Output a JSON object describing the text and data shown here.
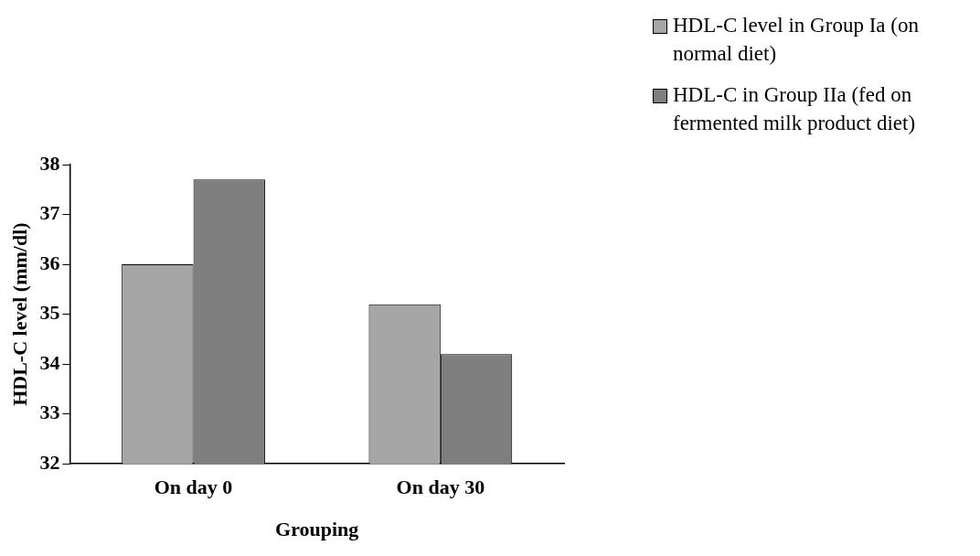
{
  "chart_data": {
    "type": "bar",
    "xlabel": "Grouping",
    "ylabel": "HDL-C level (mm/dl)",
    "categories": [
      "On day 0",
      "On day 30"
    ],
    "series": [
      {
        "name": "HDL-C level in Group Ia (on normal diet)",
        "color": "#a6a6a6",
        "values": [
          36.0,
          35.2
        ]
      },
      {
        "name": "HDL-C in Group IIa (fed on fermented milk product diet)",
        "color": "#7f7f7f",
        "values": [
          37.7,
          34.2
        ]
      }
    ],
    "ylim": [
      32,
      38
    ],
    "yticks": [
      32,
      33,
      34,
      35,
      36,
      37,
      38
    ],
    "grid": false,
    "legend": "top right"
  }
}
